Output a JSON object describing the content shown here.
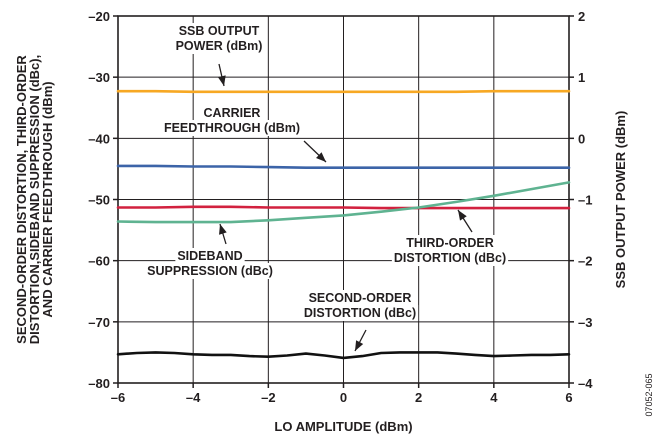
{
  "chart_data": {
    "type": "line",
    "x_label": "LO AMPLITUDE (dBm)",
    "y_left_label": [
      "SECOND-ORDER DISTORTION, THIRD-ORDER",
      "DISTORTION,SIDEBAND SUPPRESSION (dBc),",
      "AND CARRIER FEEDTHROUGH (dBm)"
    ],
    "y_right_label": "SSB OUTPUT POWER (dBm)",
    "x_range": [
      -6,
      6
    ],
    "y_left_range": [
      -80,
      -20
    ],
    "y_right_range": [
      -4,
      2
    ],
    "x_ticks": [
      -6,
      -4,
      -2,
      0,
      2,
      4,
      6
    ],
    "x_tick_labels": [
      "–6",
      "–4",
      "–2",
      "0",
      "2",
      "4",
      "6"
    ],
    "y_left_ticks": [
      -20,
      -30,
      -40,
      -50,
      -60,
      -70,
      -80
    ],
    "y_left_tick_labels": [
      "–20",
      "–30",
      "–40",
      "–50",
      "–60",
      "–70",
      "–80"
    ],
    "y_right_ticks": [
      2,
      1,
      0,
      -1,
      -2,
      -3,
      -4
    ],
    "y_right_tick_labels": [
      "2",
      "1",
      "0",
      "–1",
      "–2",
      "–3",
      "–4"
    ],
    "grid": true,
    "figure_id": "07052-065",
    "colors": {
      "ssb": "#f7a823",
      "carrier": "#3c64a8",
      "third_order": "#d2213f",
      "sideband": "#5fb391",
      "second_order": "#111111",
      "grid": "#231f20"
    },
    "series": [
      {
        "id": "ssb",
        "axis": "right",
        "x": [
          -6,
          -5,
          -4,
          -3,
          -2,
          -1,
          0,
          1,
          2,
          3,
          4,
          5,
          6
        ],
        "y": [
          0.77,
          0.77,
          0.76,
          0.76,
          0.76,
          0.76,
          0.76,
          0.76,
          0.76,
          0.76,
          0.77,
          0.77,
          0.77
        ]
      },
      {
        "id": "carrier",
        "axis": "left",
        "x": [
          -6,
          -5,
          -4,
          -3,
          -2,
          -1,
          0,
          1,
          2,
          3,
          4,
          5,
          6
        ],
        "y": [
          -44.5,
          -44.5,
          -44.6,
          -44.6,
          -44.7,
          -44.8,
          -44.8,
          -44.8,
          -44.8,
          -44.8,
          -44.8,
          -44.8,
          -44.8
        ]
      },
      {
        "id": "third_order",
        "axis": "left",
        "x": [
          -6,
          -5,
          -4,
          -3,
          -2,
          -1,
          0,
          1,
          2,
          3,
          4,
          5,
          6
        ],
        "y": [
          -51.3,
          -51.3,
          -51.2,
          -51.2,
          -51.3,
          -51.3,
          -51.3,
          -51.4,
          -51.4,
          -51.4,
          -51.4,
          -51.4,
          -51.4
        ]
      },
      {
        "id": "sideband",
        "axis": "left",
        "x": [
          -6,
          -5,
          -4,
          -3,
          -2,
          -1,
          0,
          1,
          2,
          3,
          4,
          5,
          6
        ],
        "y": [
          -53.6,
          -53.7,
          -53.7,
          -53.7,
          -53.4,
          -53.0,
          -52.6,
          -52.0,
          -51.3,
          -50.4,
          -49.4,
          -48.3,
          -47.2
        ]
      },
      {
        "id": "second_order",
        "axis": "left",
        "x": [
          -6,
          -5.5,
          -5,
          -4.5,
          -4,
          -3.5,
          -3,
          -2.5,
          -2,
          -1.5,
          -1,
          -0.5,
          0,
          0.5,
          1,
          1.5,
          2,
          2.5,
          3,
          3.5,
          4,
          4.5,
          5,
          5.5,
          6
        ],
        "y": [
          -75.3,
          -75.1,
          -75.0,
          -75.1,
          -75.3,
          -75.4,
          -75.4,
          -75.6,
          -75.7,
          -75.5,
          -75.2,
          -75.5,
          -75.9,
          -75.6,
          -75.1,
          -75.0,
          -75.0,
          -75.0,
          -75.2,
          -75.4,
          -75.6,
          -75.5,
          -75.4,
          -75.4,
          -75.3
        ]
      }
    ],
    "annotations": [
      {
        "id": "ssb",
        "lines": [
          "SSB OUTPUT",
          "POWER (dBm)"
        ]
      },
      {
        "id": "carrier",
        "lines": [
          "CARRIER",
          "FEEDTHROUGH (dBm)"
        ]
      },
      {
        "id": "sideband",
        "lines": [
          "SIDEBAND",
          "SUPPRESSION (dBc)"
        ]
      },
      {
        "id": "third_order",
        "lines": [
          "THIRD-ORDER",
          "DISTORTION (dBc)"
        ]
      },
      {
        "id": "second_order",
        "lines": [
          "SECOND-ORDER",
          "DISTORTION (dBc)"
        ]
      }
    ]
  }
}
